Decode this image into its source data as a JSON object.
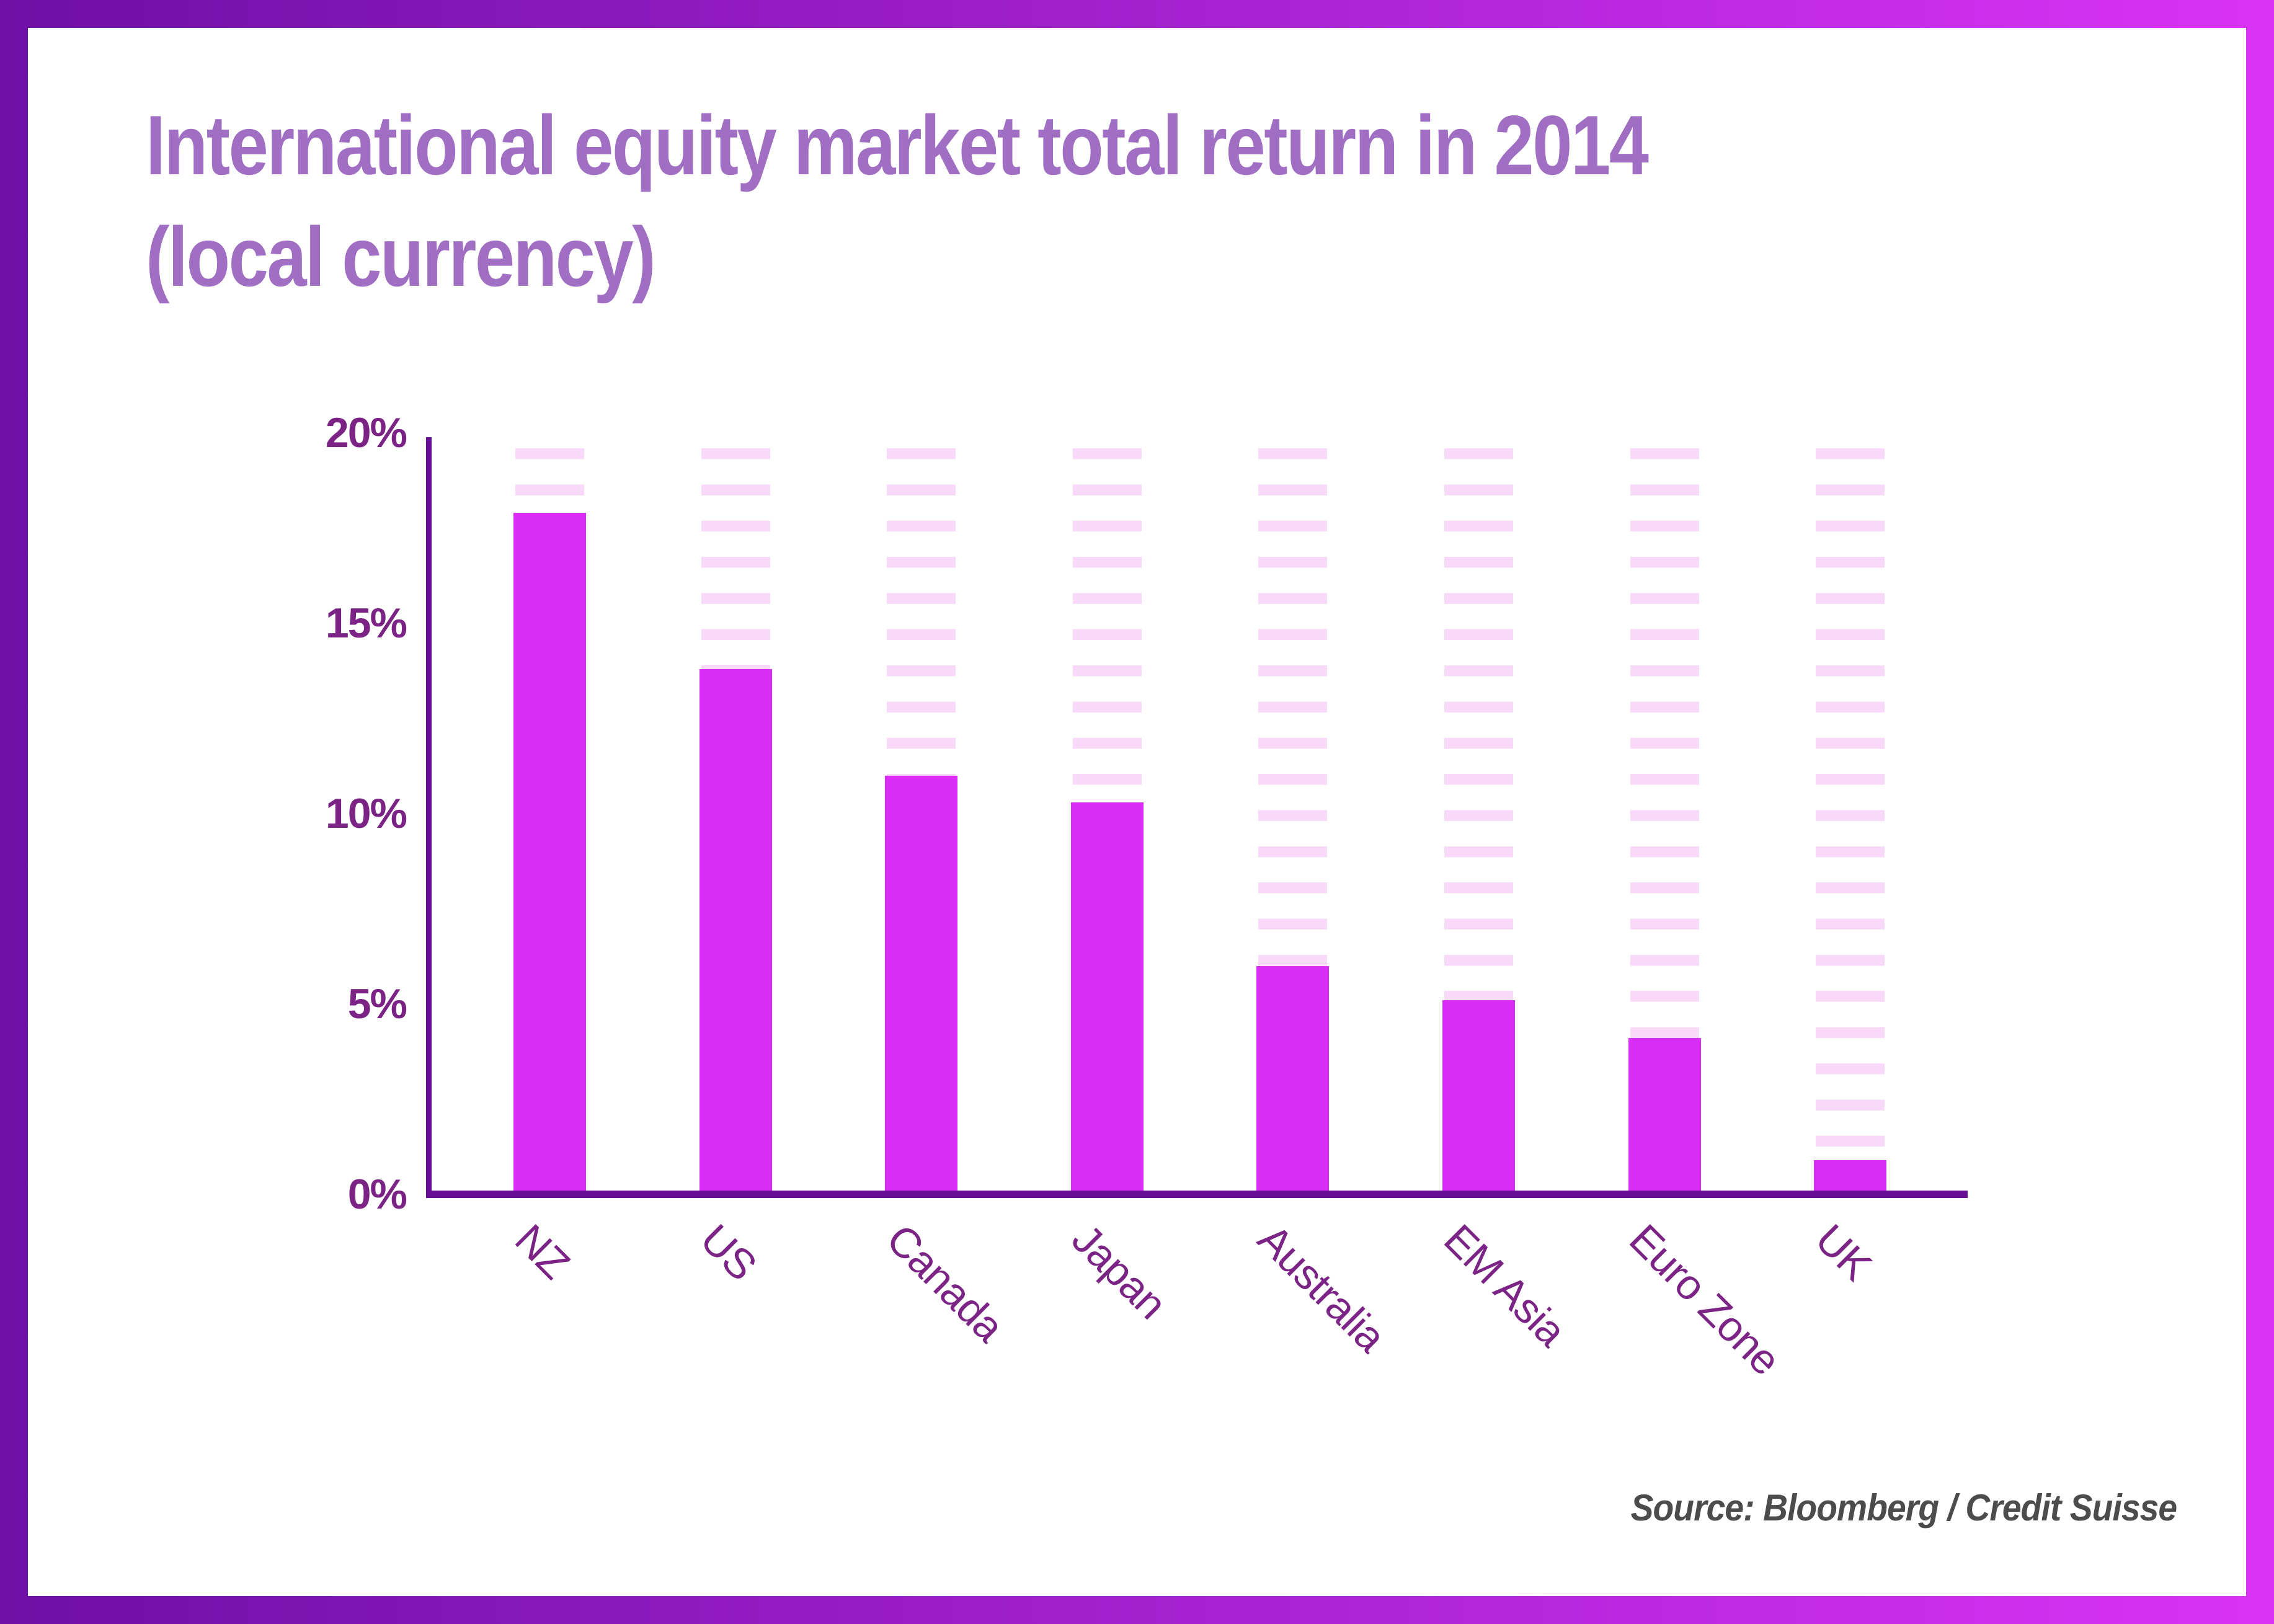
{
  "title": {
    "line1": "International equity market total return in 2014",
    "line2": "(local currency)"
  },
  "source": {
    "text": "Source: Bloomberg / Credit Suisse"
  },
  "theme": {
    "frame_gradient_from": "#6E0FA6",
    "frame_gradient_to": "#D933F6",
    "bar_color": "#D82EF5",
    "stripe_color": "#F9D9F9",
    "axis_color": "#660F95",
    "tick_label_color": "#7B2486",
    "title_color": "#A06EC3",
    "source_color": "#4C4C4C",
    "background": "#FFFFFF"
  },
  "y_axis": {
    "tick_labels": [
      "20%",
      "15%",
      "10%",
      "5%",
      "0%"
    ],
    "tick_values": [
      20,
      15,
      10,
      5,
      0
    ]
  },
  "chart_data": {
    "type": "bar",
    "title": "International equity market total return in 2014 (local currency)",
    "categories": [
      "NZ",
      "US",
      "Canada",
      "Japan",
      "Australia",
      "EM Asia",
      "Euro Zone",
      "UK"
    ],
    "values": [
      17.9,
      13.8,
      11.0,
      10.3,
      6.0,
      5.1,
      4.1,
      0.9
    ],
    "unit": "percent",
    "xlabel": "",
    "ylabel": "",
    "ylim": [
      0,
      20
    ],
    "legend": "none",
    "grid": "light pink horizontal dash stripes behind each bar column, full height of axis",
    "x_tick_rotation_deg": 45,
    "source": "Source: Bloomberg / Credit Suisse"
  }
}
